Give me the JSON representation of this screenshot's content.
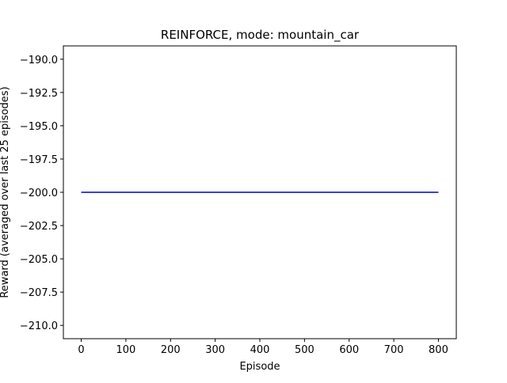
{
  "chart_data": {
    "type": "line",
    "title": "REINFORCE, mode: mountain_car",
    "xlabel": "Episode",
    "ylabel": "Reward (averaged over last 25 episodes)",
    "xlim": [
      -40,
      840
    ],
    "ylim": [
      -211.0,
      -189.0
    ],
    "x_ticks": [
      0,
      100,
      200,
      300,
      400,
      500,
      600,
      700,
      800
    ],
    "x_tick_labels": [
      "0",
      "100",
      "200",
      "300",
      "400",
      "500",
      "600",
      "700",
      "800"
    ],
    "y_ticks": [
      -190.0,
      -192.5,
      -195.0,
      -197.5,
      -200.0,
      -202.5,
      -205.0,
      -207.5,
      -210.0
    ],
    "y_tick_labels": [
      "−190.0",
      "−192.5",
      "−195.0",
      "−197.5",
      "−200.0",
      "−202.5",
      "−205.0",
      "−207.5",
      "−210.0"
    ],
    "grid": false,
    "series": [
      {
        "color": "#0000cc",
        "x": [
          0,
          800
        ],
        "y": [
          -200.0,
          -200.0
        ]
      }
    ]
  }
}
